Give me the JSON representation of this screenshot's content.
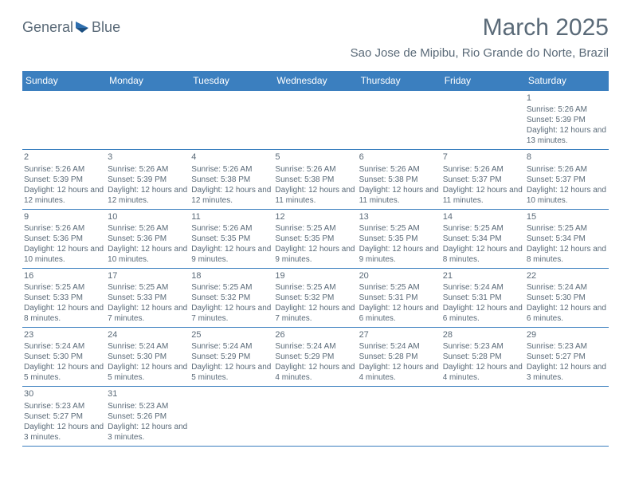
{
  "logo": {
    "text1": "General",
    "text2": "Blue",
    "icon_color": "#2f6fae"
  },
  "title": "March 2025",
  "subtitle": "Sao Jose de Mipibu, Rio Grande do Norte, Brazil",
  "header_bg": "#3b7fbf",
  "header_text_color": "#ffffff",
  "border_color": "#3b7fbf",
  "body_text_color": "#5a6a78",
  "days_of_week": [
    "Sunday",
    "Monday",
    "Tuesday",
    "Wednesday",
    "Thursday",
    "Friday",
    "Saturday"
  ],
  "weeks": [
    [
      null,
      null,
      null,
      null,
      null,
      null,
      {
        "n": "1",
        "sr": "Sunrise: 5:26 AM",
        "ss": "Sunset: 5:39 PM",
        "dl": "Daylight: 12 hours and 13 minutes."
      }
    ],
    [
      {
        "n": "2",
        "sr": "Sunrise: 5:26 AM",
        "ss": "Sunset: 5:39 PM",
        "dl": "Daylight: 12 hours and 12 minutes."
      },
      {
        "n": "3",
        "sr": "Sunrise: 5:26 AM",
        "ss": "Sunset: 5:39 PM",
        "dl": "Daylight: 12 hours and 12 minutes."
      },
      {
        "n": "4",
        "sr": "Sunrise: 5:26 AM",
        "ss": "Sunset: 5:38 PM",
        "dl": "Daylight: 12 hours and 12 minutes."
      },
      {
        "n": "5",
        "sr": "Sunrise: 5:26 AM",
        "ss": "Sunset: 5:38 PM",
        "dl": "Daylight: 12 hours and 11 minutes."
      },
      {
        "n": "6",
        "sr": "Sunrise: 5:26 AM",
        "ss": "Sunset: 5:38 PM",
        "dl": "Daylight: 12 hours and 11 minutes."
      },
      {
        "n": "7",
        "sr": "Sunrise: 5:26 AM",
        "ss": "Sunset: 5:37 PM",
        "dl": "Daylight: 12 hours and 11 minutes."
      },
      {
        "n": "8",
        "sr": "Sunrise: 5:26 AM",
        "ss": "Sunset: 5:37 PM",
        "dl": "Daylight: 12 hours and 10 minutes."
      }
    ],
    [
      {
        "n": "9",
        "sr": "Sunrise: 5:26 AM",
        "ss": "Sunset: 5:36 PM",
        "dl": "Daylight: 12 hours and 10 minutes."
      },
      {
        "n": "10",
        "sr": "Sunrise: 5:26 AM",
        "ss": "Sunset: 5:36 PM",
        "dl": "Daylight: 12 hours and 10 minutes."
      },
      {
        "n": "11",
        "sr": "Sunrise: 5:26 AM",
        "ss": "Sunset: 5:35 PM",
        "dl": "Daylight: 12 hours and 9 minutes."
      },
      {
        "n": "12",
        "sr": "Sunrise: 5:25 AM",
        "ss": "Sunset: 5:35 PM",
        "dl": "Daylight: 12 hours and 9 minutes."
      },
      {
        "n": "13",
        "sr": "Sunrise: 5:25 AM",
        "ss": "Sunset: 5:35 PM",
        "dl": "Daylight: 12 hours and 9 minutes."
      },
      {
        "n": "14",
        "sr": "Sunrise: 5:25 AM",
        "ss": "Sunset: 5:34 PM",
        "dl": "Daylight: 12 hours and 8 minutes."
      },
      {
        "n": "15",
        "sr": "Sunrise: 5:25 AM",
        "ss": "Sunset: 5:34 PM",
        "dl": "Daylight: 12 hours and 8 minutes."
      }
    ],
    [
      {
        "n": "16",
        "sr": "Sunrise: 5:25 AM",
        "ss": "Sunset: 5:33 PM",
        "dl": "Daylight: 12 hours and 8 minutes."
      },
      {
        "n": "17",
        "sr": "Sunrise: 5:25 AM",
        "ss": "Sunset: 5:33 PM",
        "dl": "Daylight: 12 hours and 7 minutes."
      },
      {
        "n": "18",
        "sr": "Sunrise: 5:25 AM",
        "ss": "Sunset: 5:32 PM",
        "dl": "Daylight: 12 hours and 7 minutes."
      },
      {
        "n": "19",
        "sr": "Sunrise: 5:25 AM",
        "ss": "Sunset: 5:32 PM",
        "dl": "Daylight: 12 hours and 7 minutes."
      },
      {
        "n": "20",
        "sr": "Sunrise: 5:25 AM",
        "ss": "Sunset: 5:31 PM",
        "dl": "Daylight: 12 hours and 6 minutes."
      },
      {
        "n": "21",
        "sr": "Sunrise: 5:24 AM",
        "ss": "Sunset: 5:31 PM",
        "dl": "Daylight: 12 hours and 6 minutes."
      },
      {
        "n": "22",
        "sr": "Sunrise: 5:24 AM",
        "ss": "Sunset: 5:30 PM",
        "dl": "Daylight: 12 hours and 6 minutes."
      }
    ],
    [
      {
        "n": "23",
        "sr": "Sunrise: 5:24 AM",
        "ss": "Sunset: 5:30 PM",
        "dl": "Daylight: 12 hours and 5 minutes."
      },
      {
        "n": "24",
        "sr": "Sunrise: 5:24 AM",
        "ss": "Sunset: 5:30 PM",
        "dl": "Daylight: 12 hours and 5 minutes."
      },
      {
        "n": "25",
        "sr": "Sunrise: 5:24 AM",
        "ss": "Sunset: 5:29 PM",
        "dl": "Daylight: 12 hours and 5 minutes."
      },
      {
        "n": "26",
        "sr": "Sunrise: 5:24 AM",
        "ss": "Sunset: 5:29 PM",
        "dl": "Daylight: 12 hours and 4 minutes."
      },
      {
        "n": "27",
        "sr": "Sunrise: 5:24 AM",
        "ss": "Sunset: 5:28 PM",
        "dl": "Daylight: 12 hours and 4 minutes."
      },
      {
        "n": "28",
        "sr": "Sunrise: 5:23 AM",
        "ss": "Sunset: 5:28 PM",
        "dl": "Daylight: 12 hours and 4 minutes."
      },
      {
        "n": "29",
        "sr": "Sunrise: 5:23 AM",
        "ss": "Sunset: 5:27 PM",
        "dl": "Daylight: 12 hours and 3 minutes."
      }
    ],
    [
      {
        "n": "30",
        "sr": "Sunrise: 5:23 AM",
        "ss": "Sunset: 5:27 PM",
        "dl": "Daylight: 12 hours and 3 minutes."
      },
      {
        "n": "31",
        "sr": "Sunrise: 5:23 AM",
        "ss": "Sunset: 5:26 PM",
        "dl": "Daylight: 12 hours and 3 minutes."
      },
      null,
      null,
      null,
      null,
      null
    ]
  ]
}
